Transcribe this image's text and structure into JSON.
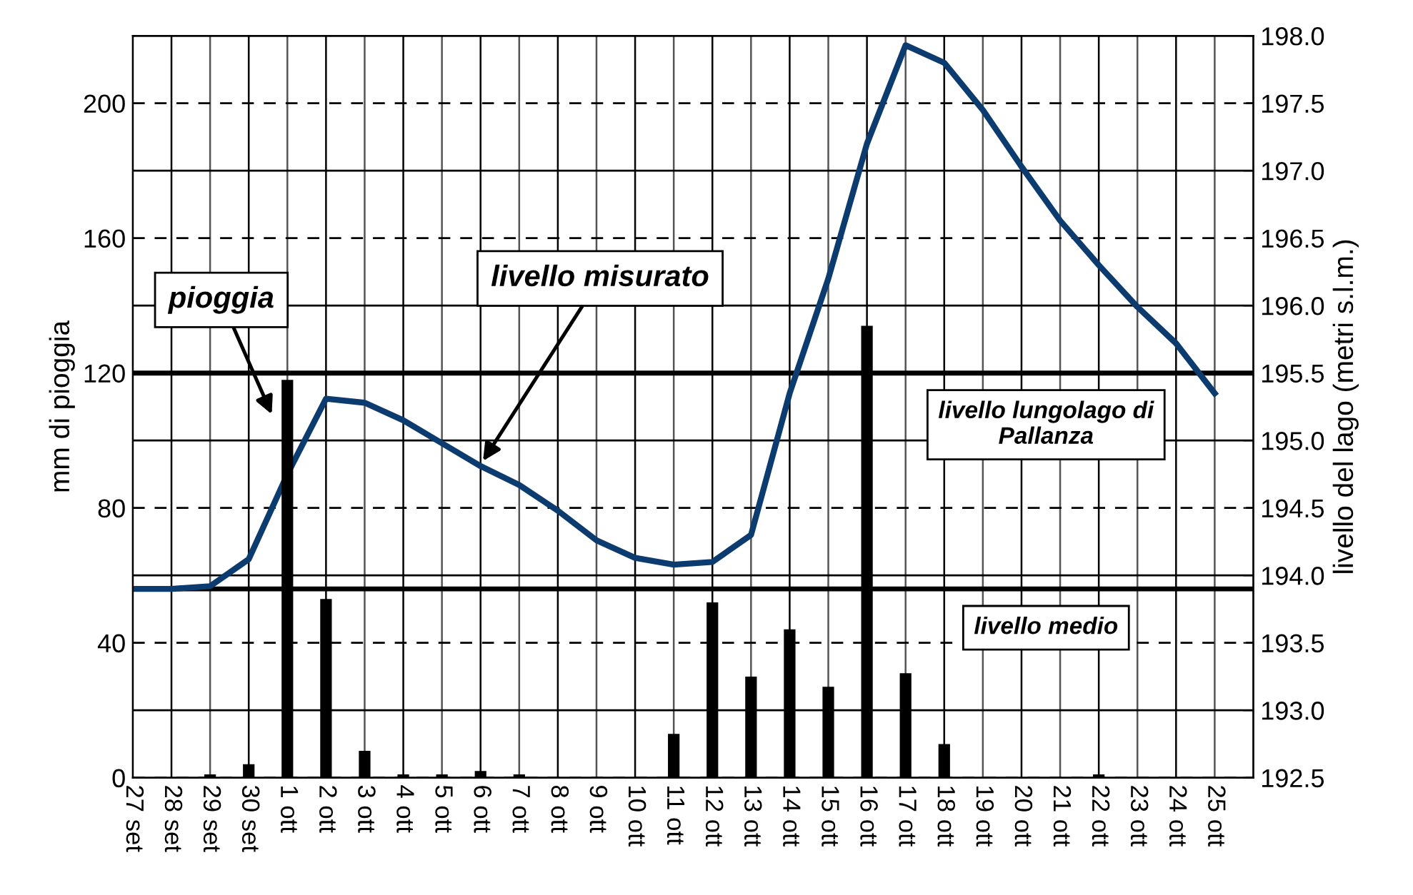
{
  "chart_data": {
    "type": "bar",
    "ylabel": "mm di pioggia",
    "y2label": "livello del lago (metri s.l.m.)",
    "categories": [
      "27 set",
      "28 set",
      "29 set",
      "30 set",
      "1 ott",
      "2 ott",
      "3 ott",
      "4 ott",
      "5 ott",
      "6 ott",
      "7 ott",
      "8 ott",
      "9 ott",
      "10 ott",
      "11 ott",
      "12 ott",
      "13 ott",
      "14 ott",
      "15 ott",
      "16 ott",
      "17 ott",
      "18 ott",
      "19 ott",
      "20 ott",
      "21 ott",
      "22 ott",
      "23 ott",
      "24 ott",
      "25 ott"
    ],
    "ylim": [
      0,
      220
    ],
    "yticks": [
      0,
      40,
      80,
      120,
      160,
      200
    ],
    "y2lim": [
      192.5,
      198.0
    ],
    "y2ticks": [
      192.5,
      {
        "value": 193,
        "label": "193.0"
      },
      193.5,
      {
        "value": 194,
        "label": "194.0"
      },
      194.5,
      {
        "value": 195,
        "label": "195.0"
      },
      195.5,
      {
        "value": 196,
        "label": "196.0"
      },
      196.5,
      {
        "value": 197,
        "label": "197.0"
      },
      197.5,
      {
        "value": 198,
        "label": "198.0"
      }
    ],
    "grid": true,
    "series": [
      {
        "color": "#000000",
        "values": [
          0,
          0,
          1,
          4,
          118,
          53,
          8,
          1,
          1,
          2,
          1,
          0,
          0,
          0,
          13,
          52,
          30,
          44,
          27,
          134,
          31,
          10,
          0,
          0,
          0,
          1,
          0,
          0,
          0
        ]
      },
      {
        "type": "line",
        "axis": "y2",
        "color": "#0b3b6f",
        "values": [
          193.9,
          193.9,
          193.92,
          194.12,
          194.75,
          195.31,
          195.28,
          195.15,
          194.98,
          194.81,
          194.67,
          194.48,
          194.26,
          194.13,
          194.08,
          194.1,
          194.3,
          195.35,
          196.2,
          197.2,
          197.93,
          197.8,
          197.45,
          197.03,
          196.63,
          196.3,
          195.99,
          195.72,
          195.35
        ]
      }
    ],
    "ref_lines": [
      {
        "axis": "y2",
        "value": 195.5,
        "label": "livello lungolago di\nPallanza",
        "color": "#000000"
      },
      {
        "axis": "y2",
        "value": 193.9,
        "label": "livello medio",
        "color": "#000000"
      }
    ],
    "annotations": [
      "pioggia",
      "livello misurato"
    ]
  }
}
